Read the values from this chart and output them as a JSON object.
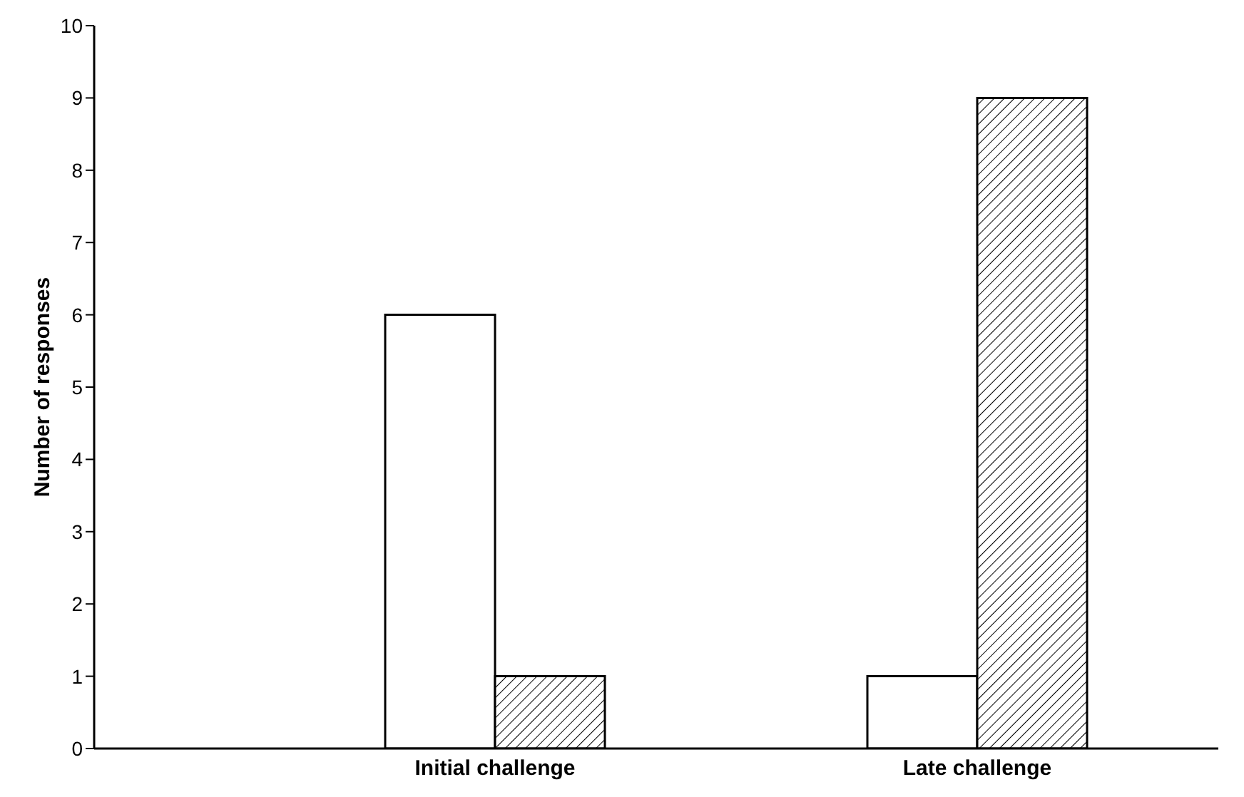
{
  "chart_data": {
    "type": "bar",
    "ylabel": "Number of responses",
    "categories": [
      "Initial challenge",
      "Late challenge"
    ],
    "series": [
      {
        "color": "#ffffff",
        "values": [
          6,
          1
        ]
      },
      {
        "color": "#000000",
        "values": [
          1,
          9
        ]
      }
    ],
    "ylim": [
      0,
      10
    ],
    "yticks": [
      0,
      1,
      2,
      3,
      4,
      5,
      6,
      7,
      8,
      9,
      10
    ],
    "grid": false,
    "legend": false
  }
}
